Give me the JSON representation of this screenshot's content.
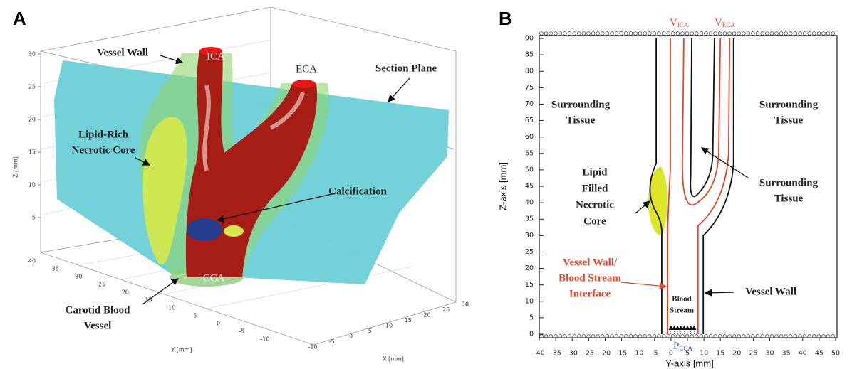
{
  "panel_a": {
    "label": "A",
    "annotations": {
      "vessel_wall": "Vessel Wall",
      "ica": "ICA",
      "eca": "ECA",
      "section_plane": "Section Plane",
      "lipid_core": [
        "Lipid-Rich",
        "Necrotic Core"
      ],
      "calcification": "Calcification",
      "cca": "CCA",
      "carotid": [
        "Carotid Blood",
        "Vessel"
      ]
    },
    "z_axis": {
      "label": "Z [mm]",
      "ticks": [
        5,
        10,
        15,
        20,
        25,
        30
      ]
    },
    "y_axis": {
      "label": "Y [mm]",
      "ticks": [
        40,
        35,
        30,
        25,
        20,
        15,
        10,
        5,
        0,
        -5,
        -10
      ]
    },
    "x_axis": {
      "label": "X [mm]",
      "ticks": [
        30,
        25,
        20,
        15,
        10,
        5,
        0,
        -5,
        -10
      ]
    }
  },
  "panel_b": {
    "label": "B",
    "v_ica": {
      "main": "V",
      "sub": "ICA"
    },
    "v_eca": {
      "main": "V",
      "sub": "ECA"
    },
    "p_cca": {
      "main": "P",
      "sub": "CCA"
    },
    "annotations": {
      "tissue_left": [
        "Surrounding",
        "Tissue"
      ],
      "tissue_right": [
        "Surrounding",
        "Tissue"
      ],
      "tissue_middle": [
        "Surrounding",
        "Tissue"
      ],
      "lipid_core": [
        "Lipid",
        "Filled",
        "Necrotic",
        "Core"
      ],
      "interface": [
        "Vessel Wall/",
        "Blood Stream",
        "Interface"
      ],
      "blood_stream": [
        "Blood",
        "Stream"
      ],
      "vessel_wall": "Vessel Wall"
    },
    "z_axis": {
      "label": "Z-axis [mm]",
      "ticks": [
        0,
        5,
        10,
        15,
        20,
        25,
        30,
        35,
        40,
        45,
        50,
        55,
        60,
        65,
        70,
        75,
        80,
        85,
        90
      ]
    },
    "y_axis": {
      "label": "Y-axis [mm]",
      "ticks": [
        -40,
        -35,
        -30,
        -25,
        -20,
        -15,
        -10,
        -5,
        0,
        5,
        10,
        15,
        20,
        25,
        30,
        35,
        40,
        45,
        50
      ]
    }
  }
}
